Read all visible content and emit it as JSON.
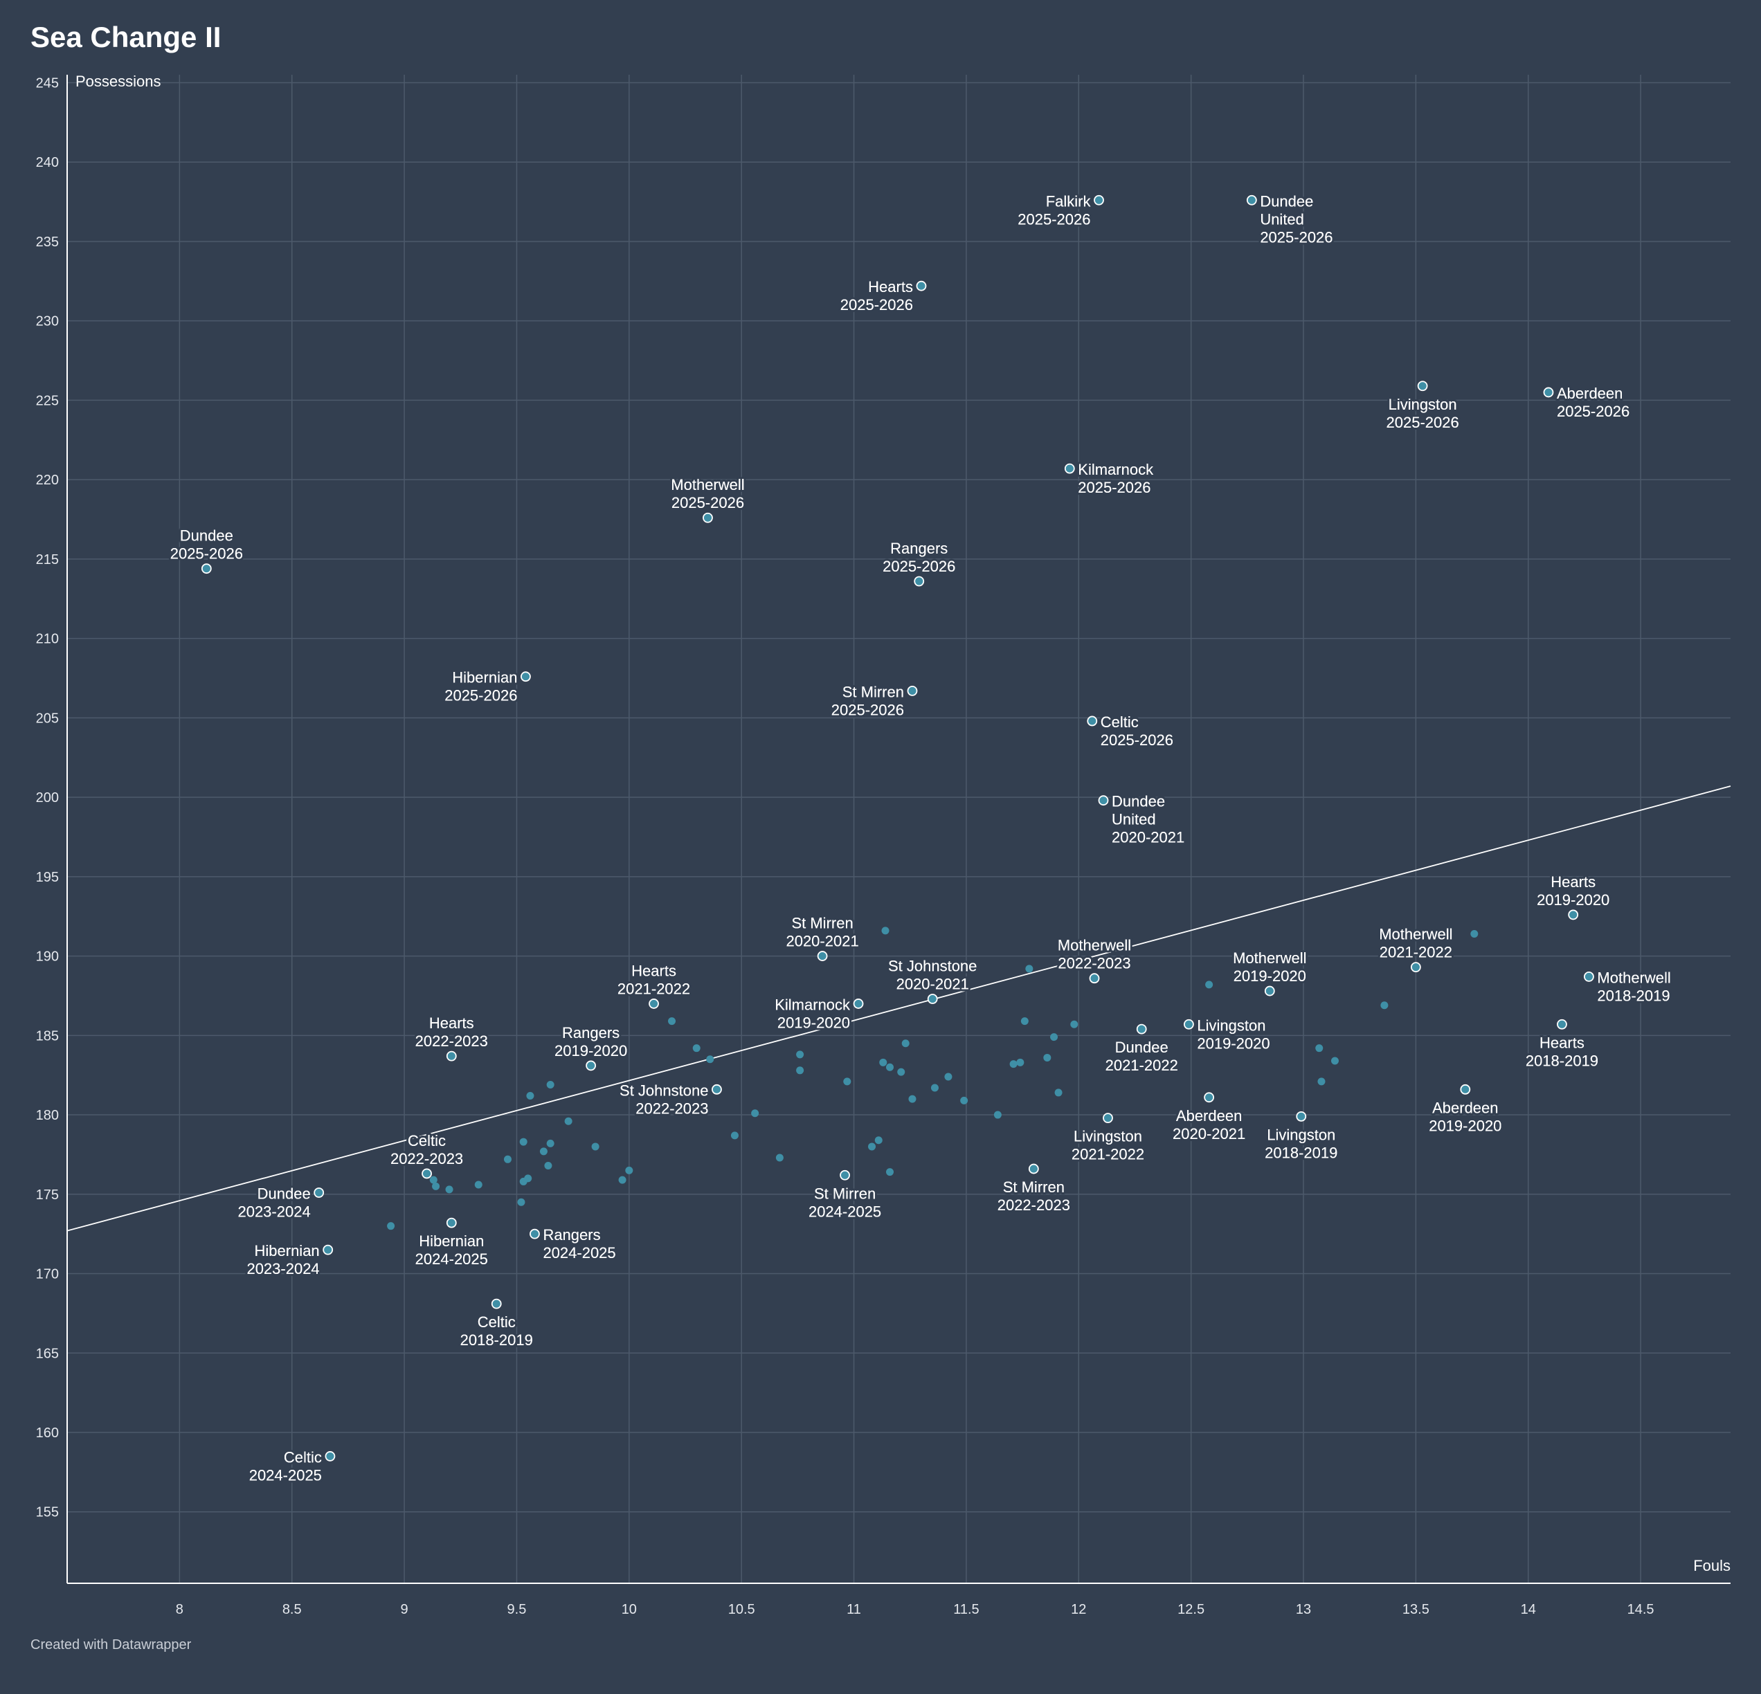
{
  "chart_data": {
    "type": "scatter",
    "title": "Sea Change II",
    "xlabel": "Fouls",
    "ylabel": "Possessions",
    "xlim": [
      7.5,
      14.9
    ],
    "ylim": [
      150.5,
      245.5
    ],
    "x_ticks": [
      8,
      8.5,
      9,
      9.5,
      10,
      10.5,
      11,
      11.5,
      12,
      12.5,
      13,
      13.5,
      14,
      14.5
    ],
    "y_ticks": [
      155,
      160,
      165,
      170,
      175,
      180,
      185,
      190,
      195,
      200,
      205,
      210,
      215,
      220,
      225,
      230,
      235,
      240,
      245
    ],
    "trendline": {
      "x": [
        7.5,
        14.9
      ],
      "y": [
        172.7,
        200.7
      ]
    },
    "highlighted_points": [
      {
        "team": "Falkirk",
        "season": "2025-2026",
        "x": 12.09,
        "y": 237.6,
        "anchor": "left"
      },
      {
        "team": "Dundee United",
        "season": "2025-2026",
        "x": 12.77,
        "y": 237.6,
        "anchor": "right"
      },
      {
        "team": "Hearts",
        "season": "2025-2026",
        "x": 11.3,
        "y": 232.2,
        "anchor": "left"
      },
      {
        "team": "Livingston",
        "season": "2025-2026",
        "x": 13.53,
        "y": 225.9,
        "anchor": "below"
      },
      {
        "team": "Aberdeen",
        "season": "2025-2026",
        "x": 14.09,
        "y": 225.5,
        "anchor": "right"
      },
      {
        "team": "Kilmarnock",
        "season": "2025-2026",
        "x": 11.96,
        "y": 220.7,
        "anchor": "right"
      },
      {
        "team": "Motherwell",
        "season": "2025-2026",
        "x": 10.35,
        "y": 217.6,
        "anchor": "above"
      },
      {
        "team": "Dundee",
        "season": "2025-2026",
        "x": 8.12,
        "y": 214.4,
        "anchor": "above"
      },
      {
        "team": "Rangers",
        "season": "2025-2026",
        "x": 11.29,
        "y": 213.6,
        "anchor": "above"
      },
      {
        "team": "Hibernian",
        "season": "2025-2026",
        "x": 9.54,
        "y": 207.6,
        "anchor": "left"
      },
      {
        "team": "St Mirren",
        "season": "2025-2026",
        "x": 11.26,
        "y": 206.7,
        "anchor": "left"
      },
      {
        "team": "Celtic",
        "season": "2025-2026",
        "x": 12.06,
        "y": 204.8,
        "anchor": "right"
      },
      {
        "team": "Dundee United",
        "season": "2020-2021",
        "x": 12.11,
        "y": 199.8,
        "anchor": "right"
      },
      {
        "team": "Hearts",
        "season": "2019-2020",
        "x": 14.2,
        "y": 192.6,
        "anchor": "above"
      },
      {
        "team": "St Mirren",
        "season": "2020-2021",
        "x": 10.86,
        "y": 190.0,
        "anchor": "above"
      },
      {
        "team": "Motherwell",
        "season": "2021-2022",
        "x": 13.5,
        "y": 189.3,
        "anchor": "above"
      },
      {
        "team": "Motherwell",
        "season": "2018-2019",
        "x": 14.27,
        "y": 188.7,
        "anchor": "right"
      },
      {
        "team": "Motherwell",
        "season": "2022-2023",
        "x": 12.07,
        "y": 188.6,
        "anchor": "above"
      },
      {
        "team": "Motherwell",
        "season": "2019-2020",
        "x": 12.85,
        "y": 187.8,
        "anchor": "above"
      },
      {
        "team": "St Johnstone",
        "season": "2020-2021",
        "x": 11.35,
        "y": 187.3,
        "anchor": "above"
      },
      {
        "team": "Hearts",
        "season": "2021-2022",
        "x": 10.11,
        "y": 187.0,
        "anchor": "above"
      },
      {
        "team": "Kilmarnock",
        "season": "2019-2020",
        "x": 11.02,
        "y": 187.0,
        "anchor": "left"
      },
      {
        "team": "Hearts",
        "season": "2018-2019",
        "x": 14.15,
        "y": 185.7,
        "anchor": "below"
      },
      {
        "team": "Livingston",
        "season": "2019-2020",
        "x": 12.49,
        "y": 185.7,
        "anchor": "right"
      },
      {
        "team": "Dundee",
        "season": "2021-2022",
        "x": 12.28,
        "y": 185.4,
        "anchor": "below"
      },
      {
        "team": "Hearts",
        "season": "2022-2023",
        "x": 9.21,
        "y": 183.7,
        "anchor": "above"
      },
      {
        "team": "Rangers",
        "season": "2019-2020",
        "x": 9.83,
        "y": 183.1,
        "anchor": "above"
      },
      {
        "team": "St Johnstone",
        "season": "2022-2023",
        "x": 10.39,
        "y": 181.6,
        "anchor": "left"
      },
      {
        "team": "Aberdeen",
        "season": "2019-2020",
        "x": 13.72,
        "y": 181.6,
        "anchor": "below"
      },
      {
        "team": "Aberdeen",
        "season": "2020-2021",
        "x": 12.58,
        "y": 181.1,
        "anchor": "below"
      },
      {
        "team": "Livingston",
        "season": "2018-2019",
        "x": 12.99,
        "y": 179.9,
        "anchor": "below"
      },
      {
        "team": "Livingston",
        "season": "2021-2022",
        "x": 12.13,
        "y": 179.8,
        "anchor": "below"
      },
      {
        "team": "St Mirren",
        "season": "2022-2023",
        "x": 11.8,
        "y": 176.6,
        "anchor": "below"
      },
      {
        "team": "Celtic",
        "season": "2022-2023",
        "x": 9.1,
        "y": 176.3,
        "anchor": "above"
      },
      {
        "team": "St Mirren",
        "season": "2024-2025",
        "x": 10.96,
        "y": 176.2,
        "anchor": "below"
      },
      {
        "team": "Dundee",
        "season": "2023-2024",
        "x": 8.62,
        "y": 175.1,
        "anchor": "left"
      },
      {
        "team": "Hibernian",
        "season": "2024-2025",
        "x": 9.21,
        "y": 173.2,
        "anchor": "below"
      },
      {
        "team": "Rangers",
        "season": "2024-2025",
        "x": 9.58,
        "y": 172.5,
        "anchor": "right"
      },
      {
        "team": "Hibernian",
        "season": "2023-2024",
        "x": 8.66,
        "y": 171.5,
        "anchor": "left"
      },
      {
        "team": "Celtic",
        "season": "2018-2019",
        "x": 9.41,
        "y": 168.1,
        "anchor": "below"
      },
      {
        "team": "Celtic",
        "season": "2024-2025",
        "x": 8.67,
        "y": 158.5,
        "anchor": "left"
      }
    ],
    "background_points": [
      {
        "x": 11.14,
        "y": 191.6
      },
      {
        "x": 13.76,
        "y": 191.4
      },
      {
        "x": 11.78,
        "y": 189.2
      },
      {
        "x": 12.58,
        "y": 188.2
      },
      {
        "x": 13.36,
        "y": 186.9
      },
      {
        "x": 10.19,
        "y": 185.9
      },
      {
        "x": 11.76,
        "y": 185.9
      },
      {
        "x": 11.98,
        "y": 185.7
      },
      {
        "x": 11.89,
        "y": 184.9
      },
      {
        "x": 11.23,
        "y": 184.5
      },
      {
        "x": 10.3,
        "y": 184.2
      },
      {
        "x": 13.07,
        "y": 184.2
      },
      {
        "x": 10.76,
        "y": 183.8
      },
      {
        "x": 10.36,
        "y": 183.5
      },
      {
        "x": 11.86,
        "y": 183.6
      },
      {
        "x": 13.14,
        "y": 183.4
      },
      {
        "x": 11.13,
        "y": 183.3
      },
      {
        "x": 11.74,
        "y": 183.3
      },
      {
        "x": 11.71,
        "y": 183.2
      },
      {
        "x": 11.16,
        "y": 183.0
      },
      {
        "x": 10.76,
        "y": 182.8
      },
      {
        "x": 11.21,
        "y": 182.7
      },
      {
        "x": 11.42,
        "y": 182.4
      },
      {
        "x": 10.97,
        "y": 182.1
      },
      {
        "x": 13.08,
        "y": 182.1
      },
      {
        "x": 9.65,
        "y": 181.9
      },
      {
        "x": 11.36,
        "y": 181.7
      },
      {
        "x": 11.91,
        "y": 181.4
      },
      {
        "x": 9.56,
        "y": 181.2
      },
      {
        "x": 11.26,
        "y": 181.0
      },
      {
        "x": 11.49,
        "y": 180.9
      },
      {
        "x": 10.56,
        "y": 180.1
      },
      {
        "x": 11.64,
        "y": 180.0
      },
      {
        "x": 9.73,
        "y": 179.6
      },
      {
        "x": 10.47,
        "y": 178.7
      },
      {
        "x": 11.11,
        "y": 178.4
      },
      {
        "x": 9.53,
        "y": 178.3
      },
      {
        "x": 9.65,
        "y": 178.2
      },
      {
        "x": 9.85,
        "y": 178.0
      },
      {
        "x": 11.08,
        "y": 178.0
      },
      {
        "x": 9.62,
        "y": 177.7
      },
      {
        "x": 10.67,
        "y": 177.3
      },
      {
        "x": 9.46,
        "y": 177.2
      },
      {
        "x": 9.64,
        "y": 176.8
      },
      {
        "x": 10.0,
        "y": 176.5
      },
      {
        "x": 11.16,
        "y": 176.4
      },
      {
        "x": 9.55,
        "y": 176.0
      },
      {
        "x": 9.13,
        "y": 175.9
      },
      {
        "x": 9.97,
        "y": 175.9
      },
      {
        "x": 9.53,
        "y": 175.8
      },
      {
        "x": 9.33,
        "y": 175.6
      },
      {
        "x": 9.14,
        "y": 175.5
      },
      {
        "x": 9.2,
        "y": 175.3
      },
      {
        "x": 9.52,
        "y": 174.5
      },
      {
        "x": 8.94,
        "y": 173.0
      }
    ]
  },
  "footer": {
    "credit": "Created with Datawrapper"
  },
  "colors": {
    "background": "#333f50",
    "point_fill": "#3f8fa6",
    "point_outline": "#ffffff",
    "grid": "#4d5a6b",
    "text": "#ffffff"
  }
}
